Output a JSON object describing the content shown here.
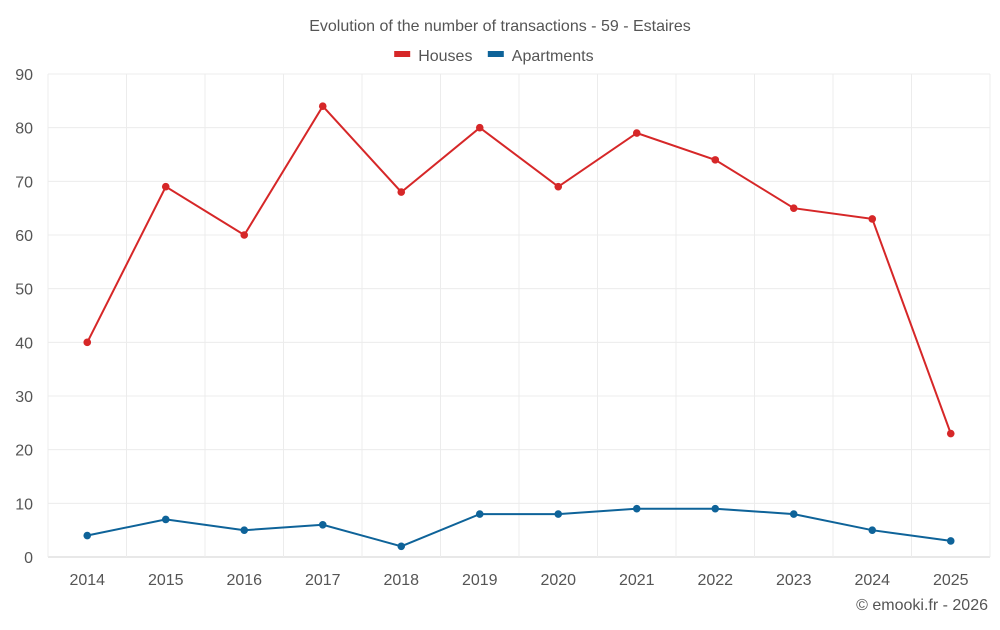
{
  "chart_data": {
    "type": "line",
    "title": "Evolution of the number of transactions - 59 - Estaires",
    "xlabel": "",
    "ylabel": "",
    "categories": [
      "2014",
      "2015",
      "2016",
      "2017",
      "2018",
      "2019",
      "2020",
      "2021",
      "2022",
      "2023",
      "2024",
      "2025"
    ],
    "ylim": [
      0,
      90
    ],
    "yticks": [
      0,
      10,
      20,
      30,
      40,
      50,
      60,
      70,
      80,
      90
    ],
    "grid": true,
    "legend_position": "top-center",
    "series": [
      {
        "name": "Houses",
        "color": "#d62728",
        "values": [
          40,
          69,
          60,
          84,
          68,
          80,
          69,
          79,
          74,
          65,
          63,
          23
        ]
      },
      {
        "name": "Apartments",
        "color": "#0e6399",
        "values": [
          4,
          7,
          5,
          6,
          2,
          8,
          8,
          9,
          9,
          8,
          5,
          3
        ]
      }
    ],
    "credit": "© emooki.fr - 2026"
  }
}
